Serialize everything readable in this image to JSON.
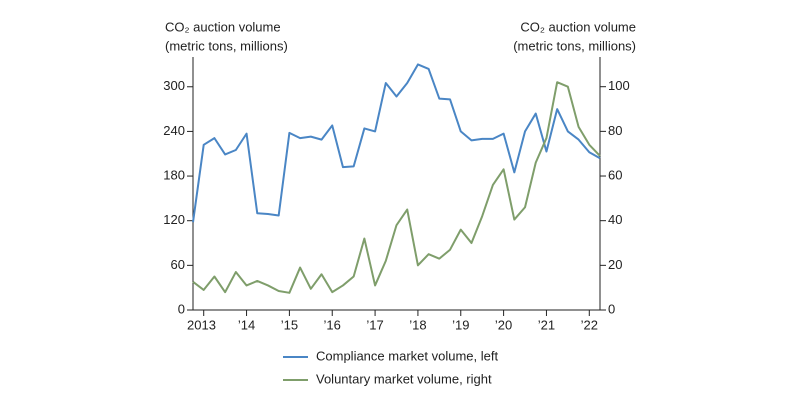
{
  "chart_data": {
    "type": "line",
    "ylabel": [
      "CO₂ auction volume",
      "(metric tons, millions)"
    ],
    "y2label": [
      "CO₂ auction volume",
      "(metric tons, millions)"
    ],
    "x": [
      2012.75,
      2013,
      2013.25,
      2013.5,
      2013.75,
      2014,
      2014.25,
      2014.5,
      2014.75,
      2015,
      2015.25,
      2015.5,
      2015.75,
      2016,
      2016.25,
      2016.5,
      2016.75,
      2017,
      2017.25,
      2017.5,
      2017.75,
      2018,
      2018.25,
      2018.5,
      2018.75,
      2019,
      2019.25,
      2019.5,
      2019.75,
      2020,
      2020.25,
      2020.5,
      2020.75,
      2021,
      2021.25,
      2021.5,
      2021.75,
      2022,
      2022.25
    ],
    "xlim": [
      2012.75,
      2022.25
    ],
    "xticks": [
      {
        "value": 2013,
        "label": "2013"
      },
      {
        "value": 2014,
        "label": "’14"
      },
      {
        "value": 2015,
        "label": "’15"
      },
      {
        "value": 2016,
        "label": "’16"
      },
      {
        "value": 2017,
        "label": "’17"
      },
      {
        "value": 2018,
        "label": "’18"
      },
      {
        "value": 2019,
        "label": "’19"
      },
      {
        "value": 2020,
        "label": "’20"
      },
      {
        "value": 2021,
        "label": "’21"
      },
      {
        "value": 2022,
        "label": "’22"
      }
    ],
    "ylim": [
      0,
      340
    ],
    "yticks": [
      0,
      60,
      120,
      180,
      240,
      300
    ],
    "y2lim": [
      0,
      113.3
    ],
    "y2ticks": [
      0,
      20,
      40,
      60,
      80,
      100
    ],
    "series": [
      {
        "name": "Compliance market volume, left",
        "color": "#4a86c5",
        "axis": "y",
        "values": [
          118,
          222,
          231,
          209,
          215,
          237,
          130,
          129,
          127,
          238,
          231,
          233,
          229,
          248,
          192,
          193,
          244,
          240,
          305,
          287,
          305,
          330,
          324,
          284,
          283,
          240,
          228,
          230,
          230,
          237,
          185,
          240,
          264,
          213,
          270,
          240,
          229,
          212,
          204
        ]
      },
      {
        "name": "Voluntary market volume, right",
        "color": "#7f9e6b",
        "axis": "y2",
        "values": [
          12.6,
          9,
          15,
          8,
          17,
          11,
          13,
          11,
          8.5,
          7.7,
          19,
          9.5,
          16,
          8,
          11,
          15,
          32,
          11,
          22,
          38,
          45,
          20,
          25,
          23,
          27,
          36,
          30,
          42,
          56,
          63,
          40.5,
          46,
          66,
          77,
          102,
          100,
          82,
          74,
          69
        ]
      }
    ]
  }
}
